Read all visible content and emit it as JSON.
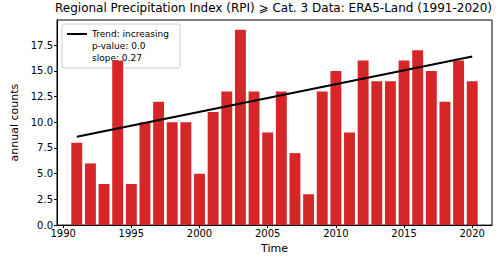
{
  "chart_data": {
    "type": "bar",
    "title": "Regional Precipitation Index (RPI) ⩾ Cat. 3",
    "subtitle": "Data: ERA5-Land (1991-2020)",
    "x_label": "Time",
    "y_label": "annual counts",
    "x": [
      1991,
      1992,
      1993,
      1994,
      1995,
      1996,
      1997,
      1998,
      1999,
      2000,
      2001,
      2002,
      2003,
      2004,
      2005,
      2006,
      2007,
      2008,
      2009,
      2010,
      2011,
      2012,
      2013,
      2014,
      2015,
      2016,
      2017,
      2018,
      2019,
      2020
    ],
    "values": [
      8,
      6,
      4,
      16,
      4,
      10,
      12,
      10,
      10,
      5,
      11,
      13,
      19,
      13,
      9,
      13,
      7,
      3,
      13,
      15,
      9,
      16,
      14,
      14,
      16,
      17,
      15,
      12,
      16,
      14
    ],
    "color": "#d62728",
    "trend": {
      "name": "Trend: increasing",
      "x": [
        1991,
        2020
      ],
      "values": [
        8.6,
        16.4
      ],
      "color": "#000000"
    },
    "annotations": [
      "p-value: 0.0",
      "slope: 0.27"
    ],
    "xlim": [
      1989.55,
      2021.45
    ],
    "xticks": [
      1990,
      1995,
      2000,
      2005,
      2010,
      2015,
      2020
    ],
    "ylim": [
      0,
      19.95
    ],
    "yticks": [
      {
        "value": 0,
        "label": "0.0"
      },
      {
        "value": 2.5,
        "label": "2.5"
      },
      {
        "value": 5,
        "label": "5.0"
      },
      {
        "value": 7.5,
        "label": "7.5"
      },
      {
        "value": 10,
        "label": "10.0"
      },
      {
        "value": 12.5,
        "label": "12.5"
      },
      {
        "value": 15,
        "label": "15.0"
      },
      {
        "value": 17.5,
        "label": "17.5"
      }
    ],
    "grid": false,
    "legend": "upper left"
  }
}
